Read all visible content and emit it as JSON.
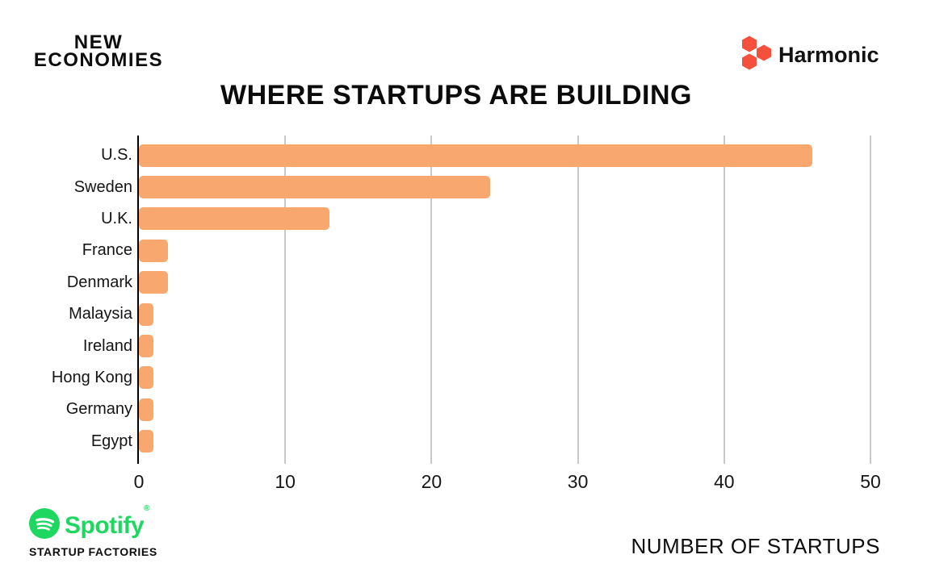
{
  "header": {
    "brand_left": {
      "line1": "NEW",
      "line2": "ECONOMIES"
    },
    "brand_right": {
      "name": "Harmonic",
      "logo_color": "#F4503C"
    }
  },
  "chart_data": {
    "type": "bar",
    "orientation": "horizontal",
    "title": "WHERE STARTUPS ARE BUILDING",
    "xlabel": "NUMBER OF STARTUPS",
    "ylabel": "",
    "categories": [
      "U.S.",
      "Sweden",
      "U.K.",
      "France",
      "Denmark",
      "Malaysia",
      "Ireland",
      "Hong Kong",
      "Germany",
      "Egypt"
    ],
    "values": [
      46,
      24,
      13,
      2,
      2,
      1,
      1,
      1,
      1,
      1
    ],
    "xlim": [
      0,
      50
    ],
    "xticks": [
      0,
      10,
      20,
      30,
      40,
      50
    ],
    "grid": true,
    "legend": false,
    "bar_color": "#F8A76E",
    "gridline_color": "#C9C9C9",
    "axis_color": "#000000"
  },
  "footer": {
    "spotify": {
      "wordmark": "Spotify",
      "registered": "®",
      "tagline": "STARTUP FACTORIES",
      "green": "#1ED760"
    }
  }
}
